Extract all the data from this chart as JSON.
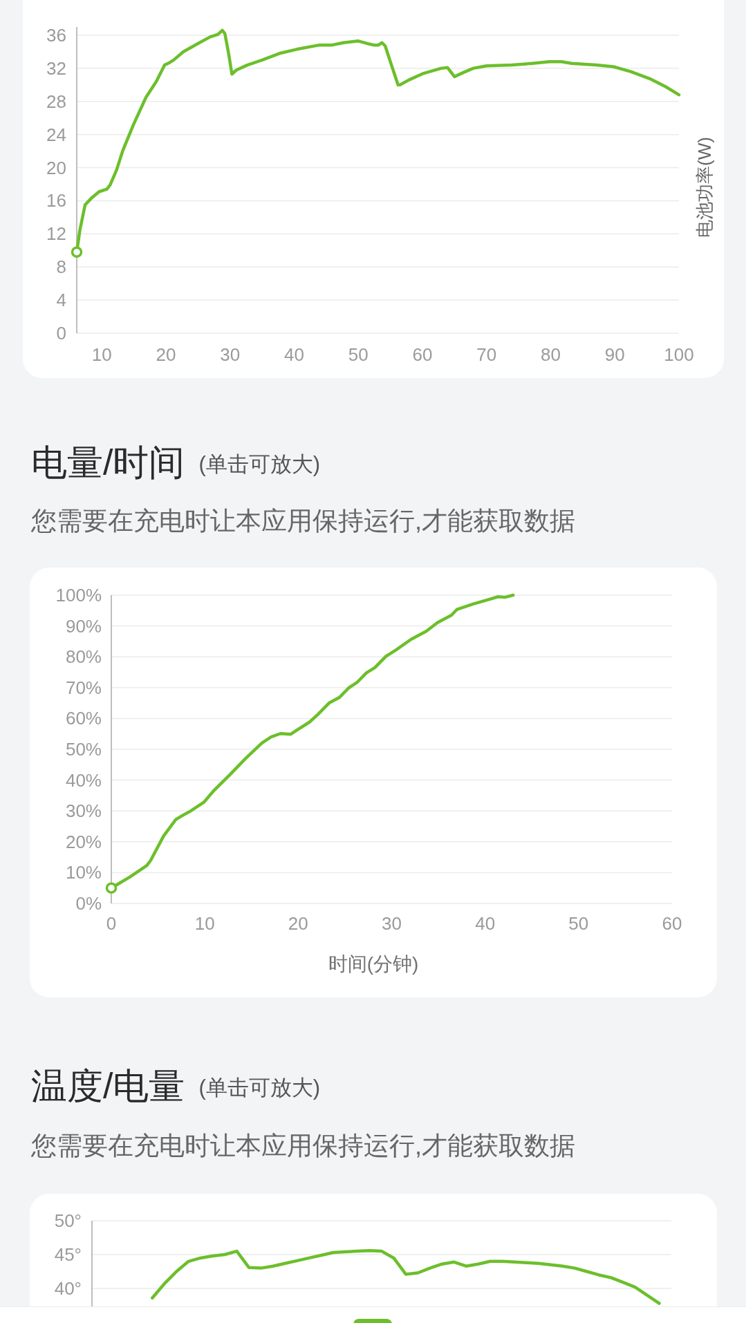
{
  "chart_data": [
    {
      "type": "line",
      "ylabel": "电池功率(W)",
      "x": [
        6.1,
        6.6,
        7.4,
        8.5,
        9.6,
        10.8,
        11.3,
        12.3,
        13.3,
        15.0,
        16.9,
        18.5,
        19.8,
        20.6,
        21.2,
        22.7,
        25.0,
        26.9,
        28.1,
        28.8,
        29.2,
        29.8,
        30.3,
        31.0,
        32.7,
        35.0,
        37.7,
        40.4,
        43.8,
        45.8,
        47.7,
        50.0,
        51.4,
        52.5,
        53.1,
        53.7,
        54.2,
        55.0,
        56.2,
        56.5,
        57.9,
        60.2,
        62.9,
        63.9,
        65.0,
        66.4,
        67.9,
        70.0,
        74.0,
        77.1,
        79.8,
        81.7,
        83.3,
        87.1,
        89.8,
        92.5,
        95.6,
        97.9,
        100
      ],
      "series": [
        {
          "color": "#6cbf2b",
          "values": [
            9.8,
            12.5,
            15.5,
            16.4,
            17.1,
            17.4,
            17.9,
            19.7,
            22.1,
            25.3,
            28.5,
            30.4,
            32.4,
            32.7,
            33.0,
            34.0,
            35.0,
            35.8,
            36.1,
            36.6,
            36.2,
            33.7,
            31.3,
            31.8,
            32.4,
            33.0,
            33.8,
            34.3,
            34.8,
            34.8,
            35.1,
            35.3,
            35.0,
            34.8,
            34.8,
            35.1,
            34.7,
            32.8,
            30.0,
            30.0,
            30.6,
            31.4,
            32.0,
            32.1,
            31.0,
            31.5,
            32.0,
            32.3,
            32.4,
            32.6,
            32.8,
            32.8,
            32.6,
            32.4,
            32.2,
            31.6,
            30.7,
            29.8,
            28.8
          ]
        },
        {
          "type": "scatter",
          "x": [
            6.1
          ],
          "values": [
            9.8
          ],
          "color": "#6cbf2b",
          "marker": "circle"
        }
      ],
      "xlim": [
        6.1,
        100
      ],
      "ylim": [
        0,
        37
      ],
      "xticks": [
        10,
        20,
        30,
        40,
        50,
        60,
        70,
        80,
        90,
        100
      ],
      "yticks": [
        0,
        4,
        8,
        12,
        16,
        20,
        24,
        28,
        32,
        36
      ],
      "grid": "y"
    },
    {
      "type": "line",
      "title": "电量/时间",
      "subtitle": "您需要在充电时让本应用保持运行,才能获取数据",
      "annotations": [
        "(单击可放大)"
      ],
      "xlabel": "时间(分钟)",
      "x": [
        0,
        2.0,
        3.8,
        4.2,
        5.6,
        6.9,
        7.6,
        8.5,
        9.9,
        11.0,
        12.7,
        14.4,
        16.1,
        17.1,
        18.1,
        19.2,
        20.1,
        21.2,
        22.1,
        23.3,
        24.4,
        25.4,
        26.3,
        27.3,
        28.2,
        29.4,
        30.4,
        32.1,
        33.7,
        34.9,
        35.7,
        36.4,
        37.0,
        38.7,
        40.5,
        41.4,
        42.1,
        43.0
      ],
      "series": [
        {
          "color": "#6cbf2b",
          "values": [
            5.0,
            8.6,
            12.3,
            13.9,
            21.9,
            27.2,
            28.5,
            30.0,
            32.8,
            36.7,
            41.8,
            47.1,
            52.0,
            54.0,
            55.1,
            54.9,
            56.7,
            58.8,
            61.3,
            65.0,
            66.8,
            69.9,
            71.7,
            74.8,
            76.5,
            80.2,
            82.1,
            85.7,
            88.3,
            91.1,
            92.4,
            93.5,
            95.4,
            97.1,
            98.7,
            99.5,
            99.3,
            100
          ]
        },
        {
          "type": "scatter",
          "x": [
            0
          ],
          "values": [
            5.0
          ],
          "color": "#6cbf2b",
          "marker": "circle"
        }
      ],
      "xlim": [
        0,
        60
      ],
      "ylim": [
        0,
        100
      ],
      "xticks": [
        0,
        10,
        20,
        30,
        40,
        50,
        60
      ],
      "yticks": [
        {
          "value": 0,
          "label": "0%"
        },
        {
          "value": 10,
          "label": "10%"
        },
        {
          "value": 20,
          "label": "20%"
        },
        {
          "value": 30,
          "label": "30%"
        },
        {
          "value": 40,
          "label": "40%"
        },
        {
          "value": 50,
          "label": "50%"
        },
        {
          "value": 60,
          "label": "60%"
        },
        {
          "value": 70,
          "label": "70%"
        },
        {
          "value": 80,
          "label": "80%"
        },
        {
          "value": 90,
          "label": "90%"
        },
        {
          "value": 100,
          "label": "100%"
        }
      ],
      "grid": "y"
    },
    {
      "type": "line",
      "title": "温度/电量",
      "subtitle": "您需要在充电时让本应用保持运行,才能获取数据",
      "annotations": [
        "(单击可放大)"
      ],
      "categories": [
        null,
        null,
        null,
        null,
        null,
        null,
        null,
        null,
        null,
        null,
        null,
        null,
        null,
        null,
        null,
        null,
        null,
        null,
        null,
        null,
        null,
        null,
        null,
        null,
        null,
        null,
        null,
        null,
        null,
        null,
        null,
        null,
        null,
        null,
        null,
        null,
        null,
        null,
        null,
        null,
        null,
        null,
        null,
        null,
        null,
        null,
        null,
        null,
        null
      ],
      "series": [
        {
          "color": "#6cbf2b",
          "values": [
            null,
            null,
            null,
            null,
            null,
            38.6,
            40.7,
            42.5,
            44.0,
            44.5,
            44.8,
            45.0,
            45.5,
            43.1,
            43.0,
            43.3,
            43.7,
            44.1,
            44.5,
            44.9,
            45.3,
            45.4,
            45.5,
            45.6,
            45.5,
            44.5,
            42.1,
            42.3,
            43.0,
            43.6,
            43.9,
            43.3,
            43.6,
            44.0,
            44.0,
            43.9,
            43.8,
            43.7,
            43.5,
            43.3,
            43.0,
            42.5,
            42.0,
            41.6,
            40.9,
            40.2,
            39.0,
            37.8,
            null
          ]
        }
      ],
      "ylim": [
        37.3,
        50
      ],
      "yticks": [
        {
          "value": 40,
          "label": "40°"
        },
        {
          "value": 45,
          "label": "45°"
        },
        {
          "value": 50,
          "label": "50°"
        }
      ],
      "grid": "y",
      "tick_labels": "y"
    }
  ]
}
